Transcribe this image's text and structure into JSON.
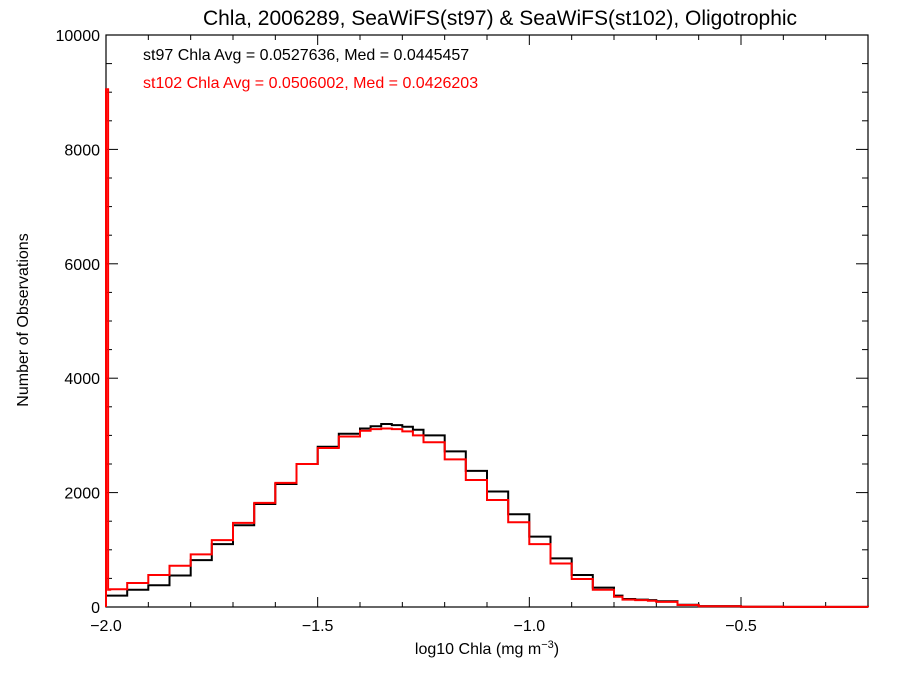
{
  "chart_data": {
    "type": "line",
    "title": "Chla, 2006289, SeaWiFS(st97) & SeaWiFS(st102), Oligotrophic",
    "xlabel": "log10 Chla (mg m",
    "xlabel_sup": "−3",
    "xlabel_close": ")",
    "ylabel": "Number of Observations",
    "xlim": [
      -2.0,
      -0.2
    ],
    "ylim": [
      0,
      10000
    ],
    "x_ticks": [
      -2.0,
      -1.5,
      -1.0,
      -0.5
    ],
    "x_tick_labels": [
      "−2.0",
      "−1.5",
      "−1.0",
      "−0.5"
    ],
    "y_ticks": [
      0,
      2000,
      4000,
      6000,
      8000,
      10000
    ],
    "y_tick_labels": [
      "0",
      "2000",
      "4000",
      "6000",
      "8000",
      "10000"
    ],
    "annotations": [
      "st97 Chla Avg = 0.0527636, Med = 0.0445457",
      "st102 Chla Avg = 0.0506002, Med = 0.0426203"
    ],
    "grid": false,
    "series": [
      {
        "name": "st97",
        "color": "#000000",
        "x": [
          -2.0,
          -1.95,
          -1.9,
          -1.85,
          -1.8,
          -1.75,
          -1.7,
          -1.65,
          -1.6,
          -1.55,
          -1.5,
          -1.45,
          -1.4,
          -1.375,
          -1.35,
          -1.325,
          -1.3,
          -1.275,
          -1.25,
          -1.2,
          -1.15,
          -1.1,
          -1.05,
          -1.0,
          -0.95,
          -0.9,
          -0.85,
          -0.8,
          -0.78,
          -0.75,
          -0.72,
          -0.7,
          -0.65,
          -0.6,
          -0.5,
          -0.4,
          -0.3,
          -0.2
        ],
        "y": [
          200,
          300,
          380,
          550,
          820,
          1100,
          1430,
          1800,
          2150,
          2500,
          2800,
          3030,
          3120,
          3160,
          3200,
          3180,
          3150,
          3100,
          3000,
          2720,
          2380,
          2020,
          1620,
          1230,
          850,
          560,
          340,
          200,
          140,
          130,
          120,
          100,
          40,
          15,
          5,
          2,
          1,
          0
        ]
      },
      {
        "name": "st102",
        "color": "#ff0000",
        "x": [
          -2.0,
          -1.995,
          -1.99,
          -1.95,
          -1.9,
          -1.85,
          -1.8,
          -1.75,
          -1.7,
          -1.65,
          -1.6,
          -1.55,
          -1.5,
          -1.45,
          -1.4,
          -1.375,
          -1.35,
          -1.325,
          -1.3,
          -1.275,
          -1.25,
          -1.2,
          -1.15,
          -1.1,
          -1.05,
          -1.0,
          -0.95,
          -0.9,
          -0.85,
          -0.8,
          -0.78,
          -0.75,
          -0.72,
          -0.7,
          -0.65,
          -0.6,
          -0.5,
          -0.4,
          -0.3,
          -0.2
        ],
        "y": [
          9050,
          300,
          310,
          420,
          560,
          720,
          920,
          1170,
          1470,
          1820,
          2170,
          2500,
          2780,
          2980,
          3080,
          3110,
          3120,
          3110,
          3070,
          3000,
          2880,
          2580,
          2220,
          1870,
          1480,
          1100,
          760,
          490,
          300,
          180,
          130,
          120,
          110,
          90,
          35,
          12,
          4,
          2,
          1,
          0
        ]
      }
    ]
  }
}
